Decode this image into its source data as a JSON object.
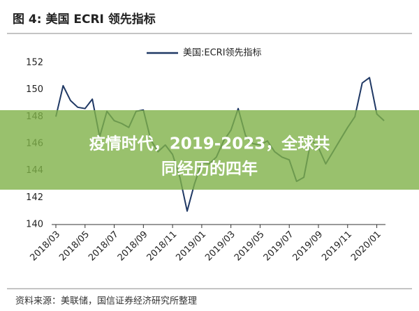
{
  "chart_data": {
    "type": "line",
    "title": "图 4:  美国 ECRI 领先指标",
    "source": "资料来源：美联储，国信证券经济研究所整理",
    "annotations": [
      "疫情时代，2019-2023，全球共",
      "同经历的四年"
    ],
    "categories": [
      "2018/03",
      null,
      null,
      null,
      "2018/05",
      null,
      null,
      null,
      "2018/07",
      null,
      null,
      null,
      "2018/09",
      null,
      null,
      null,
      "2018/11",
      null,
      null,
      null,
      "2019/01",
      null,
      null,
      null,
      "2019/03",
      null,
      null,
      null,
      "2019/05",
      null,
      null,
      null,
      "2019/07",
      null,
      null,
      null,
      "2019/09",
      null,
      null,
      null,
      "2019/11",
      null,
      null,
      null,
      "2020/01",
      null
    ],
    "series": [
      {
        "name": "美国:ECRI领先指标",
        "color": "#1f3864",
        "values": [
          148.0,
          150.3,
          149.2,
          148.7,
          148.6,
          149.3,
          146.5,
          148.4,
          147.7,
          147.5,
          147.2,
          148.4,
          148.5,
          146.3,
          145.4,
          145.9,
          145.2,
          143.5,
          141.0,
          143.0,
          144.6,
          144.5,
          145.0,
          146.2,
          147.0,
          148.6,
          146.6,
          146.0,
          145.9,
          146.2,
          145.4,
          145.0,
          144.8,
          143.2,
          143.5,
          146.3,
          145.7,
          144.5,
          145.4,
          146.3,
          147.2,
          148.0,
          150.5,
          150.9,
          148.2,
          147.7
        ]
      }
    ],
    "ylim": [
      140,
      152
    ],
    "yticks": [
      140,
      142,
      144,
      146,
      148,
      150,
      152
    ],
    "legend": "top",
    "grid": false
  }
}
